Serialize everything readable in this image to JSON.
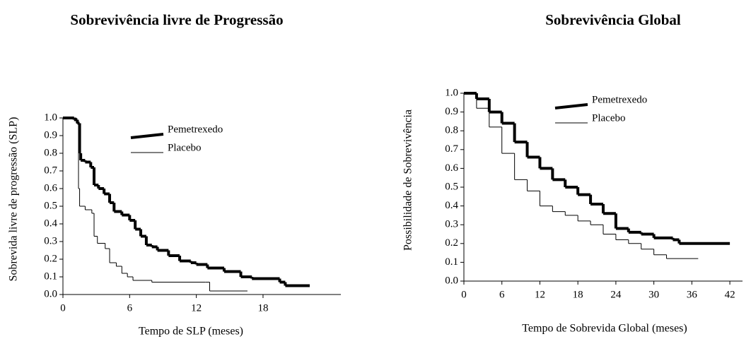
{
  "chart_data": [
    {
      "type": "line",
      "title": "Sobrevivência livre de Progressão",
      "xlabel": "Tempo de SLP (meses)",
      "ylabel": "Sobrevida livre de progressão (SLP)",
      "xlim": [
        0,
        25
      ],
      "ylim": [
        0,
        1
      ],
      "xticks": [
        0,
        6,
        12,
        18
      ],
      "yticks": [
        {
          "value": 0,
          "label": "0.0"
        },
        0.1,
        0.2,
        0.3,
        0.4,
        0.5,
        0.6,
        0.7,
        0.8,
        0.9,
        {
          "value": 1,
          "label": "1.0"
        }
      ],
      "step": true,
      "series": [
        {
          "name": "Pemetrexedo",
          "color": "#000000",
          "linewidth": 4,
          "x": [
            0,
            1,
            1.3,
            1.5,
            1.6,
            2,
            2.5,
            2.8,
            3.2,
            3.7,
            4.2,
            4.6,
            5.3,
            6,
            6.5,
            7,
            7.5,
            8,
            8.5,
            9.5,
            10.5,
            11.5,
            12,
            13,
            14.5,
            16,
            17,
            19.5,
            20,
            22.2
          ],
          "values": [
            1,
            0.99,
            0.97,
            0.8,
            0.76,
            0.75,
            0.72,
            0.62,
            0.6,
            0.57,
            0.52,
            0.47,
            0.45,
            0.42,
            0.37,
            0.33,
            0.28,
            0.27,
            0.25,
            0.22,
            0.19,
            0.18,
            0.17,
            0.15,
            0.13,
            0.1,
            0.09,
            0.07,
            0.05,
            0.05
          ]
        },
        {
          "name": "Placebo",
          "color": "#000000",
          "linewidth": 1,
          "x": [
            0,
            1.2,
            1.4,
            1.5,
            2,
            2.6,
            2.8,
            3.1,
            3.8,
            4.2,
            4.8,
            5.3,
            5.8,
            6.3,
            8,
            12.8,
            13.2,
            16.6
          ],
          "values": [
            1,
            0.97,
            0.6,
            0.5,
            0.48,
            0.46,
            0.33,
            0.29,
            0.26,
            0.18,
            0.16,
            0.12,
            0.1,
            0.08,
            0.07,
            0.07,
            0.02,
            0.02
          ]
        }
      ]
    },
    {
      "type": "line",
      "title": "Sobrevivência Global",
      "xlabel": "Tempo de Sobrevida Global (meses)",
      "ylabel": "Possibilidade de Sobrevivência",
      "xlim": [
        0,
        44
      ],
      "ylim": [
        0,
        1
      ],
      "xticks": [
        0,
        6,
        12,
        18,
        24,
        30,
        36,
        42
      ],
      "yticks": [
        {
          "value": 0,
          "label": "0.0"
        },
        0.1,
        0.2,
        0.3,
        0.4,
        0.5,
        0.6,
        0.7,
        0.8,
        0.9,
        {
          "value": 1,
          "label": "1.0"
        }
      ],
      "step": true,
      "series": [
        {
          "name": "Pemetrexedo",
          "color": "#000000",
          "linewidth": 4,
          "x": [
            0,
            2,
            4,
            6,
            8,
            10,
            12,
            14,
            16,
            18,
            20,
            22,
            24,
            26,
            28,
            30,
            33,
            34,
            42
          ],
          "values": [
            1,
            0.97,
            0.9,
            0.84,
            0.74,
            0.66,
            0.6,
            0.54,
            0.5,
            0.46,
            0.41,
            0.36,
            0.28,
            0.26,
            0.25,
            0.23,
            0.22,
            0.2,
            0.2
          ]
        },
        {
          "name": "Placebo",
          "color": "#000000",
          "linewidth": 1,
          "x": [
            0,
            2,
            4,
            6,
            8,
            10,
            12,
            14,
            16,
            18,
            20,
            22,
            24,
            26,
            28,
            30,
            32,
            37
          ],
          "values": [
            1,
            0.92,
            0.82,
            0.68,
            0.54,
            0.48,
            0.4,
            0.37,
            0.35,
            0.32,
            0.3,
            0.25,
            0.22,
            0.2,
            0.17,
            0.14,
            0.12,
            0.12
          ]
        }
      ]
    }
  ]
}
